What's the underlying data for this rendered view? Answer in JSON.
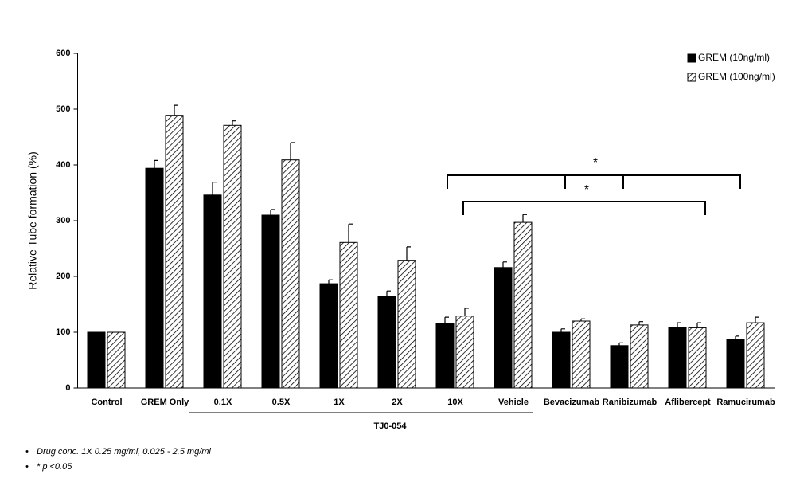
{
  "chart_data": {
    "type": "bar",
    "y_label": "Relative Tube formation (%)",
    "categories": [
      "Control",
      "GREM Only",
      "0.1X",
      "0.5X",
      "1X",
      "2X",
      "10X",
      "Vehicle",
      "Bevacizumab",
      "Ranibizumab",
      "Aflibercept",
      "Ramucirumab"
    ],
    "series": [
      {
        "name": "GREM (10ng/ml)",
        "color": "#000000",
        "pattern": "solid",
        "values": [
          100,
          394,
          346,
          310,
          187,
          164,
          116,
          216,
          100,
          76,
          109,
          87
        ],
        "errors": [
          0,
          14,
          23,
          10,
          7,
          10,
          11,
          10,
          6,
          5,
          8,
          6
        ]
      },
      {
        "name": "GREM (100ng/ml)",
        "color": "#000000",
        "pattern": "hatch",
        "values": [
          100,
          489,
          471,
          409,
          261,
          229,
          129,
          297,
          120,
          113,
          108,
          117
        ],
        "errors": [
          0,
          18,
          8,
          31,
          33,
          24,
          14,
          14,
          4,
          6,
          9,
          10
        ]
      }
    ],
    "group_label": "TJ0-054",
    "annotations": [
      "*",
      "*"
    ],
    "footnotes": [
      "Drug conc.  1X 0.25 mg/ml, 0.025 - 2.5 mg/ml",
      "* p <0.05"
    ],
    "ylim": [
      0,
      600
    ],
    "yticks": [
      0,
      100,
      200,
      300,
      400,
      500,
      600
    ],
    "legend": "top-right"
  }
}
